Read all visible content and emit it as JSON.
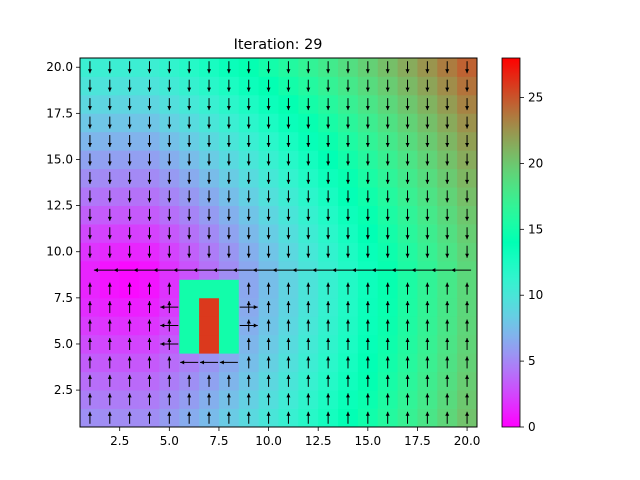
{
  "chart_data": {
    "type": "heatmap",
    "title": "Iteration: 29",
    "xlabel": "",
    "ylabel": "",
    "grid": false,
    "xlim": [
      0.5,
      20.5
    ],
    "ylim": [
      0.5,
      20.5
    ],
    "xticks": [
      2.5,
      5.0,
      7.5,
      10.0,
      12.5,
      15.0,
      17.5,
      20.0
    ],
    "xtick_labels": [
      "2.5",
      "5.0",
      "7.5",
      "10.0",
      "12.5",
      "15.0",
      "17.5",
      "20.0"
    ],
    "yticks": [
      2.5,
      5.0,
      7.5,
      10.0,
      12.5,
      15.0,
      17.5,
      20.0
    ],
    "ytick_labels": [
      "2.5",
      "5.0",
      "7.5",
      "10.0",
      "12.5",
      "15.0",
      "17.5",
      "20.0"
    ],
    "colormap": "rainbow",
    "colorbar_range": [
      0,
      28
    ],
    "colorbar_ticks": [
      0,
      5,
      10,
      15,
      20,
      25
    ],
    "colorbar_tick_labels": [
      "0",
      "5",
      "10",
      "15",
      "20",
      "25"
    ],
    "grid_size": [
      20,
      20
    ],
    "field_description": "Scalar potential on a 20x20 grid; minimum about 0 near (3, 8), rising to about 28 at the top-right corner; a raised block at x 6-8, y 5-8 (about 15) with a peak of about 26 at x = 7, y = 5-7.",
    "hot_block": {
      "x_range": [
        6,
        8
      ],
      "y_range": [
        5,
        8
      ],
      "value": 15
    },
    "hot_core": {
      "x": 7,
      "y_range": [
        5,
        7
      ],
      "value": 26
    },
    "vector_field": "Arrows follow the grid columns: downward (negative y) for y above 9, upward for y below 9, converging on the line y = 9; along y = 9 the arrows point left toward x = 1; arrows around the raised block point outward from it."
  }
}
